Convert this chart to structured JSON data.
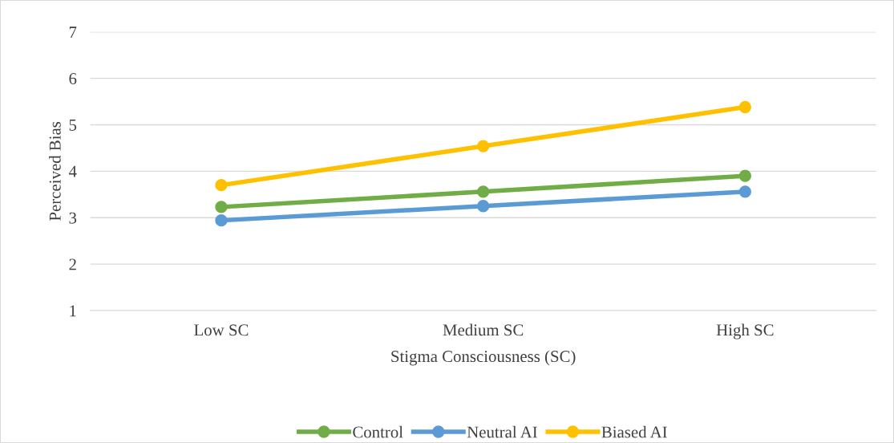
{
  "chart_data": {
    "type": "line",
    "xlabel": "Stigma Consciousness (SC)",
    "ylabel": "Perceived Bias",
    "categories": [
      "Low SC",
      "Medium SC",
      "High SC"
    ],
    "series": [
      {
        "name": "Control",
        "color": "#70ad47",
        "values": [
          3.23,
          3.56,
          3.9
        ]
      },
      {
        "name": "Neutral AI",
        "color": "#5b9bd5",
        "values": [
          2.94,
          3.25,
          3.56
        ]
      },
      {
        "name": "Biased AI",
        "color": "#ffc000",
        "values": [
          3.7,
          4.54,
          5.38
        ]
      }
    ],
    "ylim": [
      1,
      7
    ],
    "yticks": [
      1,
      2,
      3,
      4,
      5,
      6,
      7
    ],
    "grid": "y",
    "legend": "bottom",
    "marker": "circle",
    "line_style": "solid"
  }
}
